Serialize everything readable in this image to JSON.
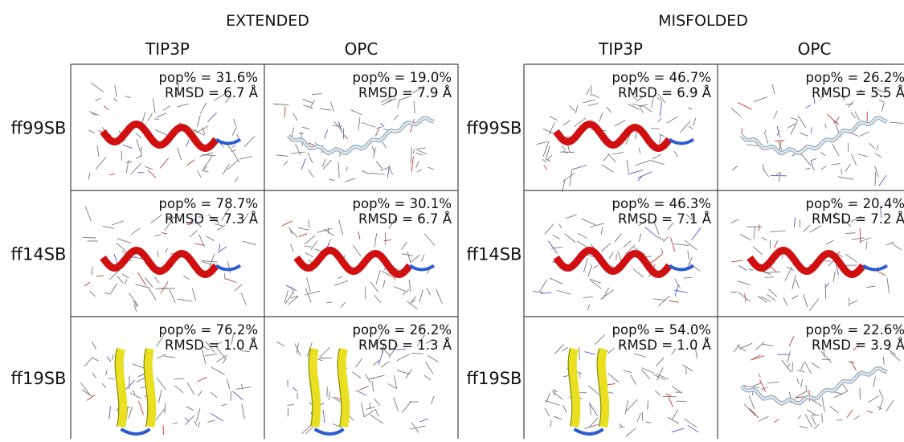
{
  "panels": [
    {
      "title": "EXTENDED",
      "columns": [
        "TIP3P",
        "OPC"
      ],
      "rows": [
        "ff99SB",
        "ff14SB",
        "ff19SB"
      ],
      "cells": [
        [
          {
            "pop": "pop% = 31.6%",
            "rmsd": "RMSD =  6.7 Å"
          },
          {
            "pop": "pop% = 19.0%",
            "rmsd": "RMSD =  7.9 Å"
          }
        ],
        [
          {
            "pop": "pop% = 78.7%",
            "rmsd": "RMSD =  7.3 Å"
          },
          {
            "pop": "pop% = 30.1%",
            "rmsd": "RMSD =  6.7 Å"
          }
        ],
        [
          {
            "pop": "pop% = 76.2%",
            "rmsd": "RMSD =  1.0 Å"
          },
          {
            "pop": "pop% = 26.2%",
            "rmsd": "RMSD =  1.3 Å"
          }
        ]
      ]
    },
    {
      "title": "MISFOLDED",
      "columns": [
        "TIP3P",
        "OPC"
      ],
      "rows": [
        "ff99SB",
        "ff14SB",
        "ff19SB"
      ],
      "cells": [
        [
          {
            "pop": "pop% = 46.7%",
            "rmsd": "RMSD =  6.9 Å"
          },
          {
            "pop": "pop% = 26.2%",
            "rmsd": "RMSD =  5.5 Å"
          }
        ],
        [
          {
            "pop": "pop% = 46.3%",
            "rmsd": "RMSD =  7.1 Å"
          },
          {
            "pop": "pop% = 20.4%",
            "rmsd": "RMSD =  7.2 Å"
          }
        ],
        [
          {
            "pop": "pop% = 54.0%",
            "rmsd": "RMSD =  1.0 Å"
          },
          {
            "pop": "pop% = 22.6%",
            "rmsd": "RMSD =  3.9 Å"
          }
        ]
      ]
    }
  ]
}
